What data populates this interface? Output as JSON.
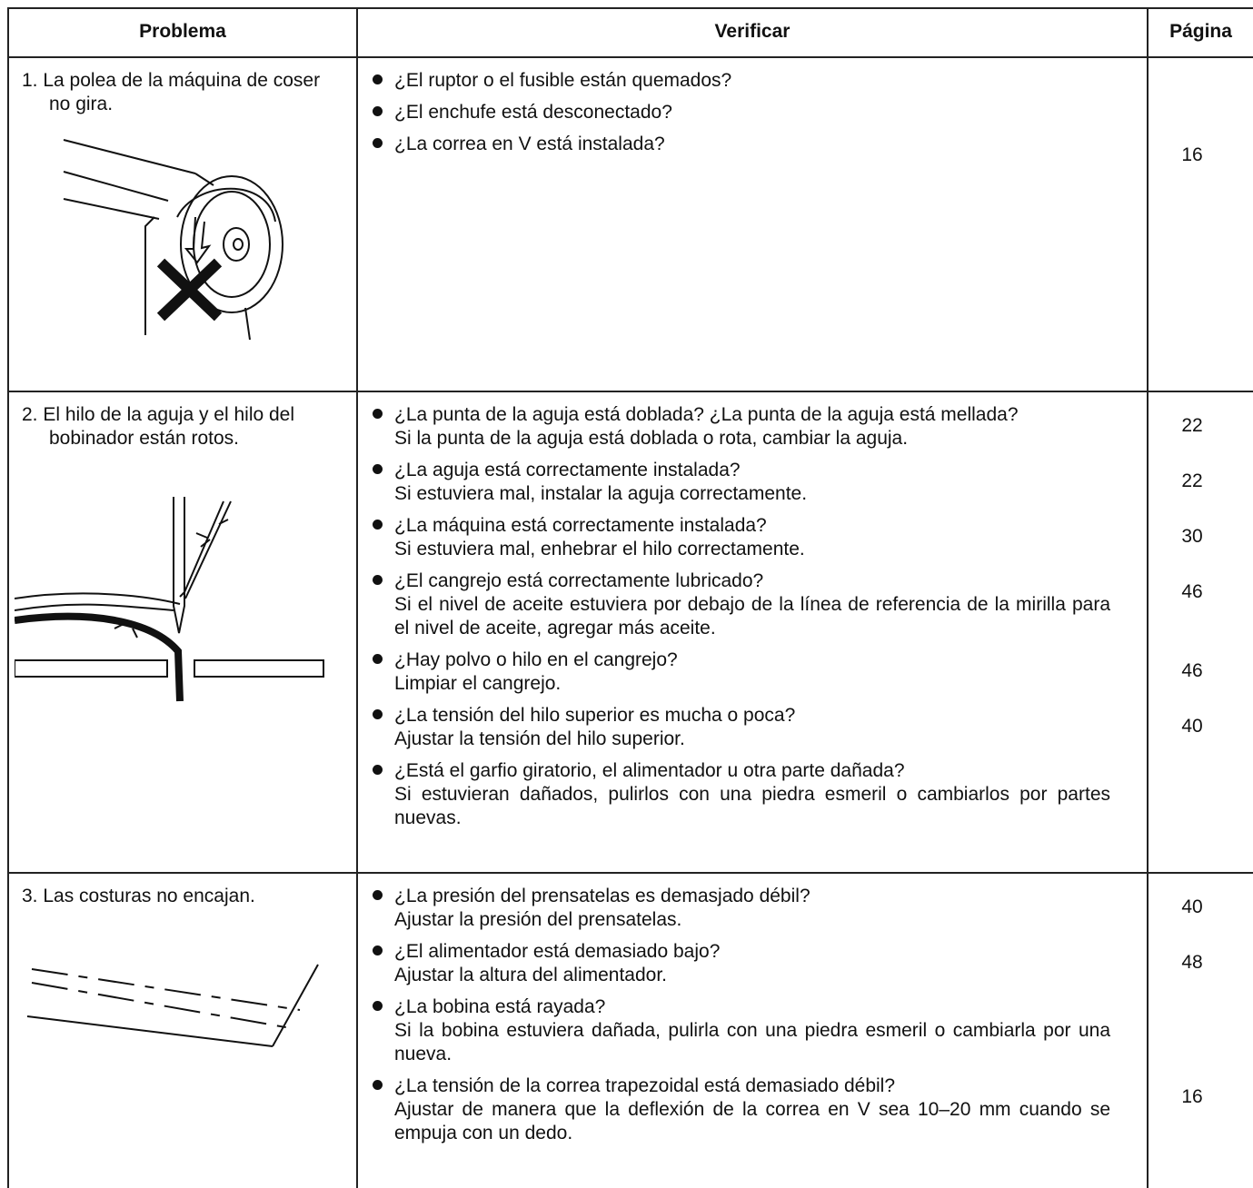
{
  "table": {
    "headers": [
      "Problema",
      "Verificar",
      "Página"
    ],
    "rows": [
      {
        "problem": "1. La polea de la máquina de coser no gira.",
        "items": [
          {
            "check": "¿El ruptor o el fusible están quemados?"
          },
          {
            "check": "¿El enchufe está desconectado?"
          },
          {
            "check": "¿La correa en V está instalada?",
            "page": 16
          }
        ]
      },
      {
        "problem": "2. El hilo de la aguja y el hilo del bobinador están rotos.",
        "items": [
          {
            "check": "¿La punta de la aguja está doblada? ¿La punta de la aguja está mellada?",
            "action": "Si la punta de la aguja está doblada o rota, cambiar la aguja.",
            "page": 22
          },
          {
            "check": "¿La aguja está correctamente instalada?",
            "action": "Si estuviera mal, instalar la aguja correctamente.",
            "page": 22
          },
          {
            "check": "¿La máquina está correctamente instalada?",
            "action": "Si estuviera mal, enhebrar el hilo correctamente.",
            "page": 30
          },
          {
            "check": "¿El cangrejo está correctamente lubricado?",
            "action": "Si el nivel de aceite estuviera por debajo de la línea de referencia de la mirilla para el nivel de aceite, agregar más aceite.",
            "page": 46
          },
          {
            "check": "¿Hay polvo o hilo en el cangrejo?",
            "action": "Limpiar el cangrejo.",
            "page": 46
          },
          {
            "check": "¿La tensión del hilo superior es mucha o poca?",
            "action": "Ajustar la tensión del hilo superior.",
            "page": 40
          },
          {
            "check": "¿Está el garfio giratorio, el alimentador u otra parte dañada?",
            "action": "Si estuvieran dañados, pulirlos con una piedra esmeril o cambiarlos por partes nuevas."
          }
        ]
      },
      {
        "problem": "3. Las costuras no encajan.",
        "items": [
          {
            "check": "¿La presión del prensatelas es demasjado débil?",
            "action": "Ajustar la presión del prensatelas.",
            "page": 40
          },
          {
            "check": "¿El alimentador está demasiado bajo?",
            "action": "Ajustar la altura del alimentador.",
            "page": 48
          },
          {
            "check": "¿La bobina está rayada?",
            "action": "Si la bobina estuviera dañada, pulirla con una piedra esmeril o cambiarla por una nueva."
          },
          {
            "check": "¿La tensión de la correa trapezoidal está demasiado débil?",
            "action": "Ajustar de manera que la deflexión de la correa en V sea 10–20 mm cuando se empuja con un dedo.",
            "page": 16
          }
        ]
      }
    ]
  }
}
